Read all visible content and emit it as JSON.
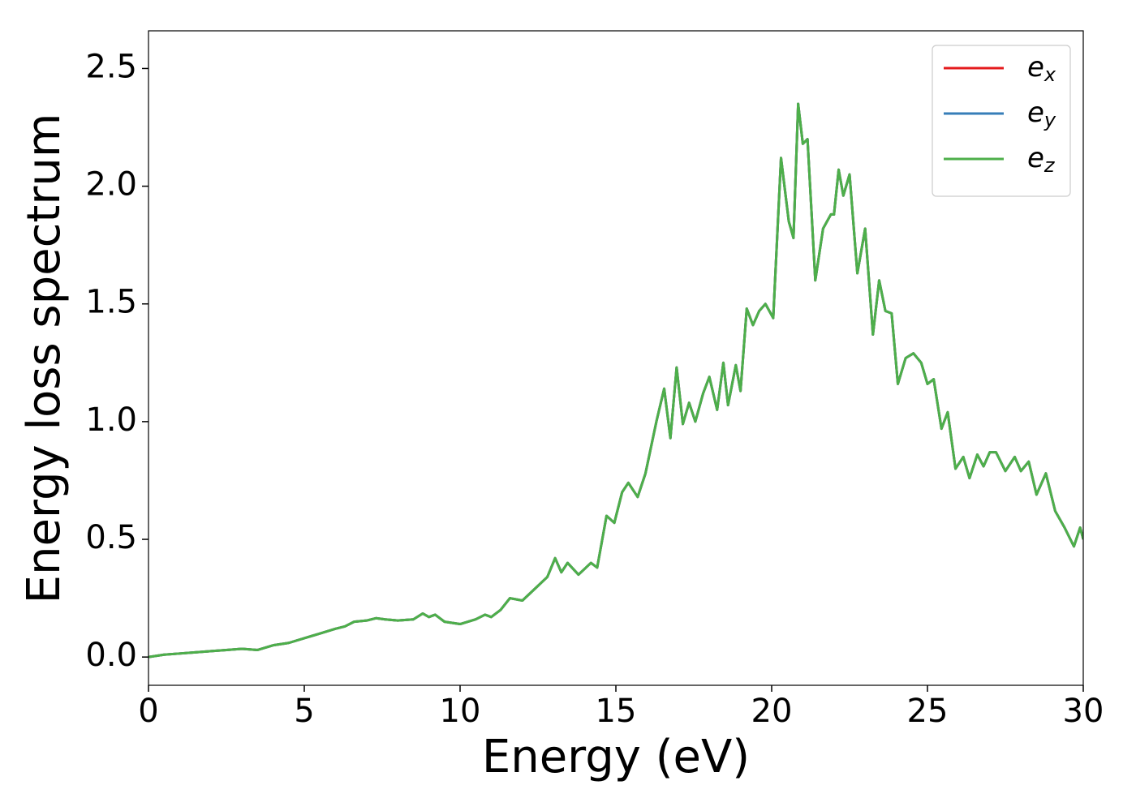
{
  "chart_data": {
    "type": "line",
    "xlabel": "Energy (eV)",
    "ylabel": "Energy loss spectrum",
    "x": [
      0,
      0.5,
      1,
      1.5,
      2,
      2.5,
      3,
      3.5,
      4,
      4.5,
      5,
      5.5,
      6,
      6.3,
      6.6,
      7,
      7.3,
      7.6,
      8,
      8.5,
      8.8,
      9,
      9.2,
      9.5,
      10,
      10.5,
      10.8,
      11,
      11.3,
      11.6,
      12,
      12.4,
      12.8,
      13.05,
      13.25,
      13.45,
      13.8,
      14.2,
      14.4,
      14.7,
      14.95,
      15.2,
      15.4,
      15.7,
      15.95,
      16.3,
      16.55,
      16.75,
      16.95,
      17.15,
      17.35,
      17.55,
      17.8,
      18.0,
      18.25,
      18.45,
      18.6,
      18.85,
      19.0,
      19.2,
      19.4,
      19.6,
      19.8,
      20.05,
      20.3,
      20.55,
      20.7,
      20.85,
      21.0,
      21.15,
      21.4,
      21.65,
      21.9,
      22.0,
      22.15,
      22.3,
      22.5,
      22.75,
      23.0,
      23.25,
      23.45,
      23.65,
      23.85,
      24.05,
      24.3,
      24.55,
      24.8,
      25.0,
      25.2,
      25.45,
      25.65,
      25.9,
      26.15,
      26.35,
      26.6,
      26.8,
      27.0,
      27.2,
      27.5,
      27.8,
      28.0,
      28.25,
      28.5,
      28.8,
      29.1,
      29.4,
      29.7,
      29.9,
      30
    ],
    "series": [
      {
        "name": "e_x",
        "color": "#e41a1c",
        "values": [
          0,
          0.01,
          0.015,
          0.02,
          0.025,
          0.03,
          0.035,
          0.03,
          0.05,
          0.06,
          0.08,
          0.1,
          0.12,
          0.13,
          0.15,
          0.155,
          0.165,
          0.16,
          0.155,
          0.16,
          0.185,
          0.17,
          0.18,
          0.15,
          0.14,
          0.16,
          0.18,
          0.17,
          0.2,
          0.25,
          0.24,
          0.29,
          0.34,
          0.42,
          0.36,
          0.4,
          0.35,
          0.4,
          0.38,
          0.6,
          0.57,
          0.7,
          0.74,
          0.68,
          0.78,
          1.0,
          1.14,
          0.93,
          1.23,
          0.99,
          1.08,
          1.0,
          1.12,
          1.19,
          1.05,
          1.25,
          1.07,
          1.24,
          1.13,
          1.48,
          1.41,
          1.47,
          1.5,
          1.44,
          2.12,
          1.85,
          1.78,
          2.35,
          2.18,
          2.2,
          1.6,
          1.82,
          1.88,
          1.88,
          2.07,
          1.96,
          2.05,
          1.63,
          1.82,
          1.37,
          1.6,
          1.47,
          1.46,
          1.16,
          1.27,
          1.29,
          1.25,
          1.16,
          1.18,
          0.97,
          1.04,
          0.8,
          0.85,
          0.76,
          0.86,
          0.81,
          0.87,
          0.87,
          0.79,
          0.85,
          0.79,
          0.83,
          0.69,
          0.78,
          0.62,
          0.55,
          0.47,
          0.55,
          0.5
        ]
      },
      {
        "name": "e_y",
        "color": "#377eb8",
        "values": [
          0,
          0.01,
          0.015,
          0.02,
          0.025,
          0.03,
          0.035,
          0.03,
          0.05,
          0.06,
          0.08,
          0.1,
          0.12,
          0.13,
          0.15,
          0.155,
          0.165,
          0.16,
          0.155,
          0.16,
          0.185,
          0.17,
          0.18,
          0.15,
          0.14,
          0.16,
          0.18,
          0.17,
          0.2,
          0.25,
          0.24,
          0.29,
          0.34,
          0.42,
          0.36,
          0.4,
          0.35,
          0.4,
          0.38,
          0.6,
          0.57,
          0.7,
          0.74,
          0.68,
          0.78,
          1.0,
          1.14,
          0.93,
          1.23,
          0.99,
          1.08,
          1.0,
          1.12,
          1.19,
          1.05,
          1.25,
          1.07,
          1.24,
          1.13,
          1.48,
          1.41,
          1.47,
          1.5,
          1.44,
          2.12,
          1.85,
          1.78,
          2.35,
          2.18,
          2.2,
          1.6,
          1.82,
          1.88,
          1.88,
          2.07,
          1.96,
          2.05,
          1.63,
          1.82,
          1.37,
          1.6,
          1.47,
          1.46,
          1.16,
          1.27,
          1.29,
          1.25,
          1.16,
          1.18,
          0.97,
          1.04,
          0.8,
          0.85,
          0.76,
          0.86,
          0.81,
          0.87,
          0.87,
          0.79,
          0.85,
          0.79,
          0.83,
          0.69,
          0.78,
          0.62,
          0.55,
          0.47,
          0.55,
          0.5
        ]
      },
      {
        "name": "e_z",
        "color": "#4daf4a",
        "values": [
          0,
          0.01,
          0.015,
          0.02,
          0.025,
          0.03,
          0.035,
          0.03,
          0.05,
          0.06,
          0.08,
          0.1,
          0.12,
          0.13,
          0.15,
          0.155,
          0.165,
          0.16,
          0.155,
          0.16,
          0.185,
          0.17,
          0.18,
          0.15,
          0.14,
          0.16,
          0.18,
          0.17,
          0.2,
          0.25,
          0.24,
          0.29,
          0.34,
          0.42,
          0.36,
          0.4,
          0.35,
          0.4,
          0.38,
          0.6,
          0.57,
          0.7,
          0.74,
          0.68,
          0.78,
          1.0,
          1.14,
          0.93,
          1.23,
          0.99,
          1.08,
          1.0,
          1.12,
          1.19,
          1.05,
          1.25,
          1.07,
          1.24,
          1.13,
          1.48,
          1.41,
          1.47,
          1.5,
          1.44,
          2.12,
          1.85,
          1.78,
          2.35,
          2.18,
          2.2,
          1.6,
          1.82,
          1.88,
          1.88,
          2.07,
          1.96,
          2.05,
          1.63,
          1.82,
          1.37,
          1.6,
          1.47,
          1.46,
          1.16,
          1.27,
          1.29,
          1.25,
          1.16,
          1.18,
          0.97,
          1.04,
          0.8,
          0.85,
          0.76,
          0.86,
          0.81,
          0.87,
          0.87,
          0.79,
          0.85,
          0.79,
          0.83,
          0.69,
          0.78,
          0.62,
          0.55,
          0.47,
          0.55,
          0.5
        ]
      }
    ],
    "xlim": [
      0,
      30
    ],
    "xticks": [
      0,
      5,
      10,
      15,
      20,
      25,
      30
    ],
    "ylim": [
      -0.12,
      2.66
    ],
    "yticks": [
      {
        "value": 0,
        "label": "0.0"
      },
      0.5,
      {
        "value": 1,
        "label": "1.0"
      },
      1.5,
      {
        "value": 2,
        "label": "2.0"
      },
      2.5
    ],
    "grid": false,
    "legend": "upper right"
  }
}
